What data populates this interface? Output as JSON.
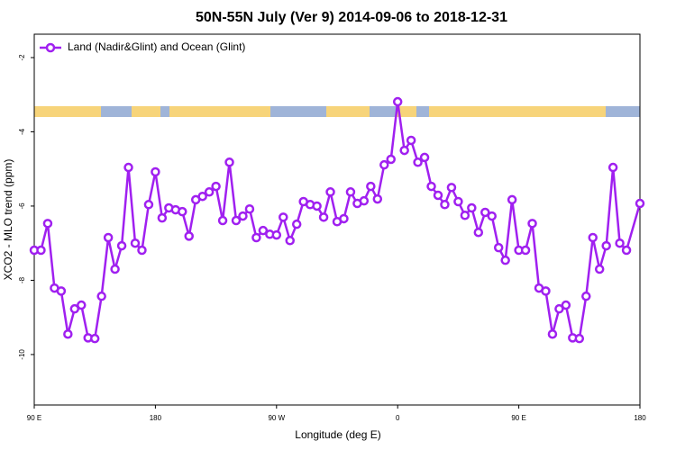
{
  "chart_data": {
    "type": "line",
    "title": "50N-55N July (Ver 9)   2014-09-06 to 2018-12-31",
    "x_label": "Longitude (deg E)",
    "y_label": "XCO2 - MLO trend (ppm)",
    "legend": "top-left",
    "xlim": [
      90,
      540
    ],
    "xticks": [
      {
        "value": 90,
        "label": "90 E"
      },
      {
        "value": 180,
        "label": "180"
      },
      {
        "value": 270,
        "label": "90 W"
      },
      {
        "value": 360,
        "label": "0"
      },
      {
        "value": 450,
        "label": "90 E"
      },
      {
        "value": 540,
        "label": "180"
      }
    ],
    "ylim": [
      -11.36,
      -1.37
    ],
    "yticks": [
      -2,
      -4,
      -6,
      -8,
      -10
    ],
    "series": [
      {
        "name": "Land (Nadir&Glint) and Ocean (Glint)",
        "color": "#a020f0",
        "x": [
          90,
          95,
          100,
          105,
          110,
          115,
          120,
          125,
          130,
          135,
          140,
          145,
          150,
          155,
          160,
          165,
          170,
          175,
          180,
          185,
          190,
          195,
          200,
          205,
          210,
          215,
          220,
          225,
          230,
          235,
          240,
          245,
          250,
          255,
          260,
          265,
          270,
          275,
          280,
          285,
          290,
          295,
          300,
          305,
          310,
          315,
          320,
          325,
          330,
          335,
          340,
          345,
          350,
          355,
          360,
          365,
          370,
          375,
          380,
          385,
          390,
          395,
          400,
          405,
          410,
          415,
          420,
          425,
          430,
          435,
          440,
          445,
          450,
          455,
          460,
          465,
          470,
          475,
          480,
          485,
          490,
          495,
          500,
          505,
          510,
          515,
          520,
          525,
          530,
          540
        ],
        "values": [
          -7.19,
          -7.19,
          -6.47,
          -8.21,
          -8.29,
          -9.45,
          -8.77,
          -8.67,
          -9.55,
          -9.57,
          -8.43,
          -6.85,
          -7.7,
          -7.07,
          -4.96,
          -7.0,
          -7.19,
          -5.96,
          -5.08,
          -6.32,
          -6.05,
          -6.1,
          -6.15,
          -6.81,
          -5.83,
          -5.74,
          -5.62,
          -5.47,
          -6.39,
          -4.82,
          -6.39,
          -6.27,
          -6.08,
          -6.85,
          -6.66,
          -6.76,
          -6.78,
          -6.3,
          -6.93,
          -6.49,
          -5.88,
          -5.96,
          -6.0,
          -6.3,
          -5.62,
          -6.42,
          -6.34,
          -5.62,
          -5.93,
          -5.86,
          -5.47,
          -5.81,
          -4.89,
          -4.74,
          -3.19,
          -4.5,
          -4.23,
          -4.82,
          -4.69,
          -5.47,
          -5.71,
          -5.96,
          -5.5,
          -5.88,
          -6.25,
          -6.05,
          -6.71,
          -6.17,
          -6.27,
          -7.12,
          -7.46,
          -5.83,
          -7.19,
          -7.19,
          -6.47,
          -8.21,
          -8.29,
          -9.45,
          -8.77,
          -8.67,
          -9.55,
          -9.57,
          -8.43,
          -6.85,
          -7.7,
          -7.07,
          -4.96,
          -7.0,
          -7.19,
          -5.93
        ]
      }
    ]
  }
}
